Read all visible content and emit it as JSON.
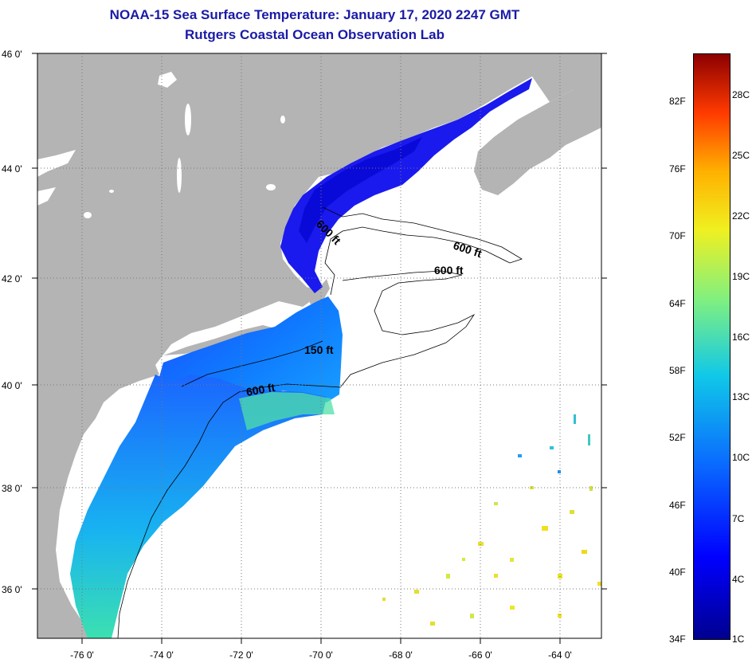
{
  "title": {
    "line1": "NOAA-15 Sea Surface Temperature:  January 17, 2020 2247 GMT",
    "line2": "Rutgers Coastal Ocean Observation Lab"
  },
  "map": {
    "lat_labels": [
      "46 0'",
      "44 0'",
      "42 0'",
      "40 0'",
      "38 0'",
      "36 0'"
    ],
    "lon_labels": [
      "-76 0'",
      "-74 0'",
      "-72 0'",
      "-70 0'",
      "-68 0'",
      "-66 0'",
      "-64 0'"
    ],
    "isobath_labels": [
      "600 ft",
      "600 ft",
      "600 ft",
      "150 ft",
      "600 ft"
    ],
    "colors": {
      "land": "#b4b4b4",
      "ocean_nodata": "#ffffff",
      "grid": "#888888"
    }
  },
  "colorbar": {
    "fahrenheit_labels": [
      "82F",
      "76F",
      "70F",
      "64F",
      "58F",
      "52F",
      "46F",
      "40F",
      "34F"
    ],
    "celsius_labels": [
      "28C",
      "25C",
      "22C",
      "19C",
      "16C",
      "13C",
      "10C",
      "7C",
      "4C",
      "1C"
    ]
  }
}
